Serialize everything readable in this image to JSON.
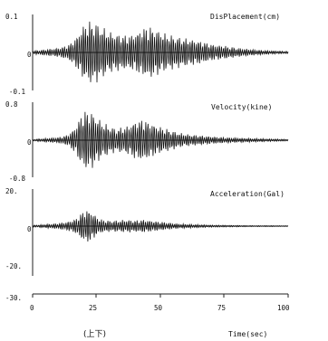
{
  "chart_data": [
    {
      "type": "line",
      "title": "DisPlacement(cm)",
      "ylim": [
        -0.1,
        0.1
      ],
      "yticks": [
        "0.1",
        "0",
        "-0.1"
      ],
      "amplitude_profile": {
        "time_sec": [
          0,
          5,
          10,
          14,
          17,
          19,
          21,
          23,
          25,
          27,
          30,
          33,
          37,
          40,
          43,
          46,
          49,
          52,
          55,
          58,
          62,
          66,
          70,
          75,
          80,
          86,
          92,
          100
        ],
        "peak": [
          0.004,
          0.008,
          0.012,
          0.02,
          0.04,
          0.065,
          0.08,
          0.085,
          0.08,
          0.07,
          0.055,
          0.05,
          0.045,
          0.05,
          0.065,
          0.07,
          0.06,
          0.05,
          0.045,
          0.04,
          0.035,
          0.03,
          0.022,
          0.018,
          0.012,
          0.008,
          0.005,
          0.003
        ]
      }
    },
    {
      "type": "line",
      "title": "Velocity(kine)",
      "ylim": [
        -0.8,
        0.8
      ],
      "yticks": [
        "0.8",
        "0",
        "-0.8"
      ],
      "amplitude_profile": {
        "time_sec": [
          0,
          5,
          10,
          14,
          17,
          19,
          21,
          23,
          25,
          27,
          30,
          33,
          37,
          40,
          43,
          46,
          49,
          52,
          55,
          58,
          62,
          66,
          70,
          75,
          80,
          86,
          92,
          100
        ],
        "peak": [
          0.02,
          0.04,
          0.06,
          0.12,
          0.3,
          0.55,
          0.65,
          0.62,
          0.5,
          0.4,
          0.3,
          0.25,
          0.3,
          0.4,
          0.45,
          0.38,
          0.3,
          0.25,
          0.2,
          0.15,
          0.12,
          0.1,
          0.08,
          0.06,
          0.05,
          0.04,
          0.03,
          0.02
        ]
      }
    },
    {
      "type": "line",
      "title": "Acceleration(Gal)",
      "ylim": [
        -20,
        20
      ],
      "yticks": [
        "20.",
        "0",
        "-20.",
        "-30."
      ],
      "amplitude_profile": {
        "time_sec": [
          0,
          5,
          10,
          14,
          17,
          19,
          21,
          23,
          25,
          27,
          30,
          33,
          37,
          40,
          43,
          46,
          49,
          52,
          55,
          58,
          62,
          66,
          70,
          75,
          80,
          86,
          92,
          100
        ],
        "peak": [
          0.5,
          1,
          1.5,
          2.5,
          4,
          7,
          9,
          8,
          5,
          3.5,
          3,
          3,
          3.5,
          3,
          3.5,
          3,
          2.5,
          2,
          1.5,
          1.2,
          1,
          0.8,
          0.6,
          0.5,
          0.4,
          0.3,
          0.3,
          0.2
        ]
      }
    }
  ],
  "xaxis": {
    "xlim": [
      0,
      100
    ],
    "ticks": [
      "0",
      "25",
      "50",
      "75",
      "100"
    ],
    "label": "Time(sec)"
  },
  "caption": "(上下)",
  "colors": {
    "trace": "#111111",
    "axis": "#222222"
  }
}
